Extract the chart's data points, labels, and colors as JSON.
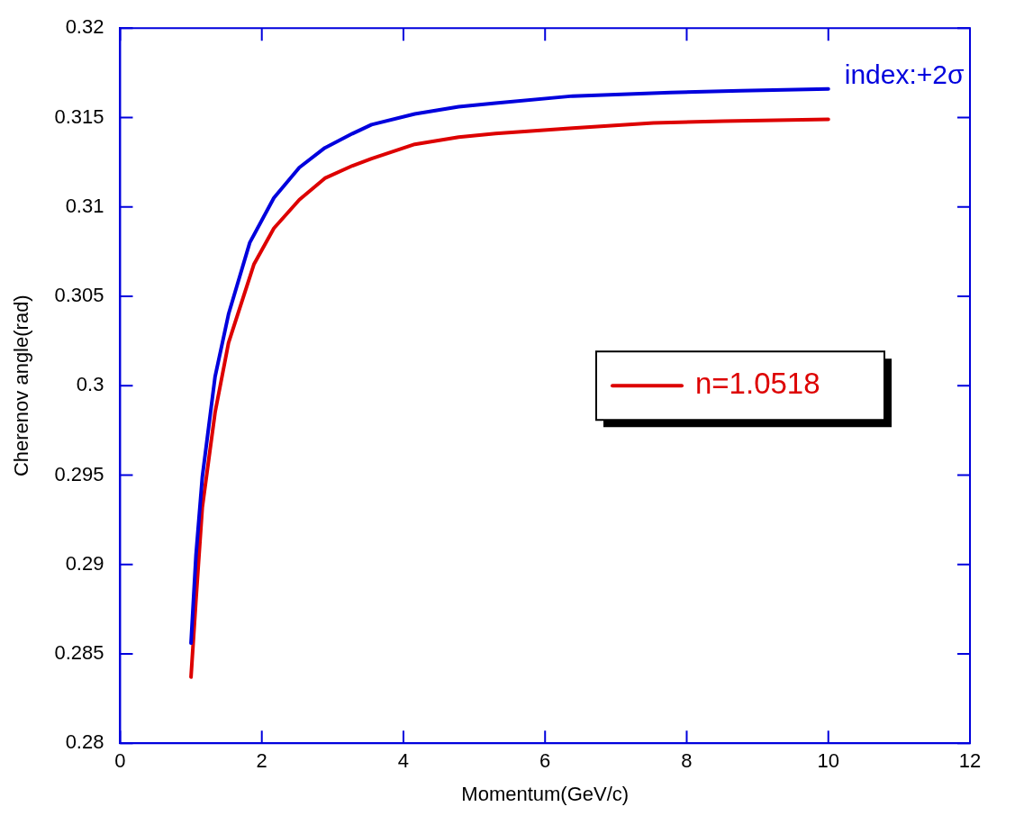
{
  "chart_data": {
    "type": "line",
    "xlabel": "Momentum(GeV/c)",
    "ylabel": "Cherenov angle(rad)",
    "xlim": [
      0,
      12
    ],
    "xticks": [
      0,
      2,
      4,
      6,
      8,
      10,
      12
    ],
    "ylim": [
      0.28,
      0.32
    ],
    "yticks": [
      0.28,
      0.285,
      0.29,
      0.295,
      0.3,
      0.305,
      0.31,
      0.315,
      0.32
    ],
    "grid": false,
    "legend": "right",
    "marker": "none",
    "line_style": "solid",
    "series": [
      {
        "color": "#0000dd",
        "x": [
          1.0,
          1.07,
          1.16,
          1.34,
          1.53,
          1.83,
          2.17,
          2.53,
          2.89,
          3.28,
          3.55,
          4.16,
          4.78,
          5.3,
          6.39,
          7.77,
          8.76,
          10.0
        ],
        "values": [
          0.2856,
          0.2905,
          0.2949,
          0.3005,
          0.304,
          0.308,
          0.3105,
          0.3122,
          0.3133,
          0.3141,
          0.3146,
          0.3152,
          0.3156,
          0.3158,
          0.3162,
          0.3164,
          0.3165,
          0.3166
        ]
      },
      {
        "name": "n=1.0518",
        "color": "#dd0000",
        "x": [
          1.0,
          1.07,
          1.16,
          1.34,
          1.53,
          1.89,
          2.17,
          2.53,
          2.89,
          3.28,
          3.55,
          4.16,
          4.78,
          5.3,
          6.39,
          7.53,
          8.52,
          10.0
        ],
        "values": [
          0.2837,
          0.288,
          0.2932,
          0.2985,
          0.3024,
          0.3068,
          0.3088,
          0.3104,
          0.3116,
          0.3123,
          0.3127,
          0.3135,
          0.3139,
          0.3141,
          0.3144,
          0.3147,
          0.3148,
          0.3149
        ]
      }
    ],
    "annotations": [
      {
        "text": "index:+2σ",
        "x": 10,
        "y": 0.3166
      }
    ]
  }
}
